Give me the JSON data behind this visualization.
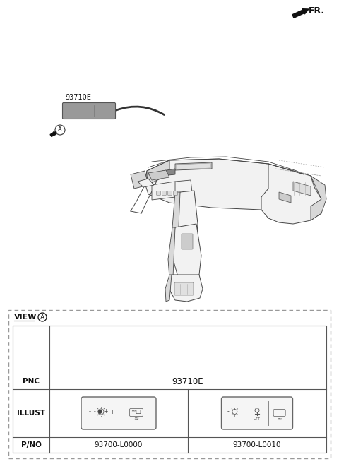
{
  "bg_color": "#ffffff",
  "title_fr": "FR.",
  "label_93710E": "93710E",
  "label_A": "A",
  "view_label": "VIEW",
  "pnc_label": "PNC",
  "pnc_value": "93710E",
  "illust_label": "ILLUST",
  "pno_label": "P/NO",
  "pno_value1": "93700-L0000",
  "pno_value2": "93700-L0010",
  "dark_gray": "#555555",
  "mid_gray": "#888888",
  "light_gray": "#bbbbbb",
  "fill_light": "#f2f2f2",
  "fill_mid": "#d8d8d8",
  "fill_dark": "#999999",
  "line_col": "#444444",
  "text_col": "#111111"
}
